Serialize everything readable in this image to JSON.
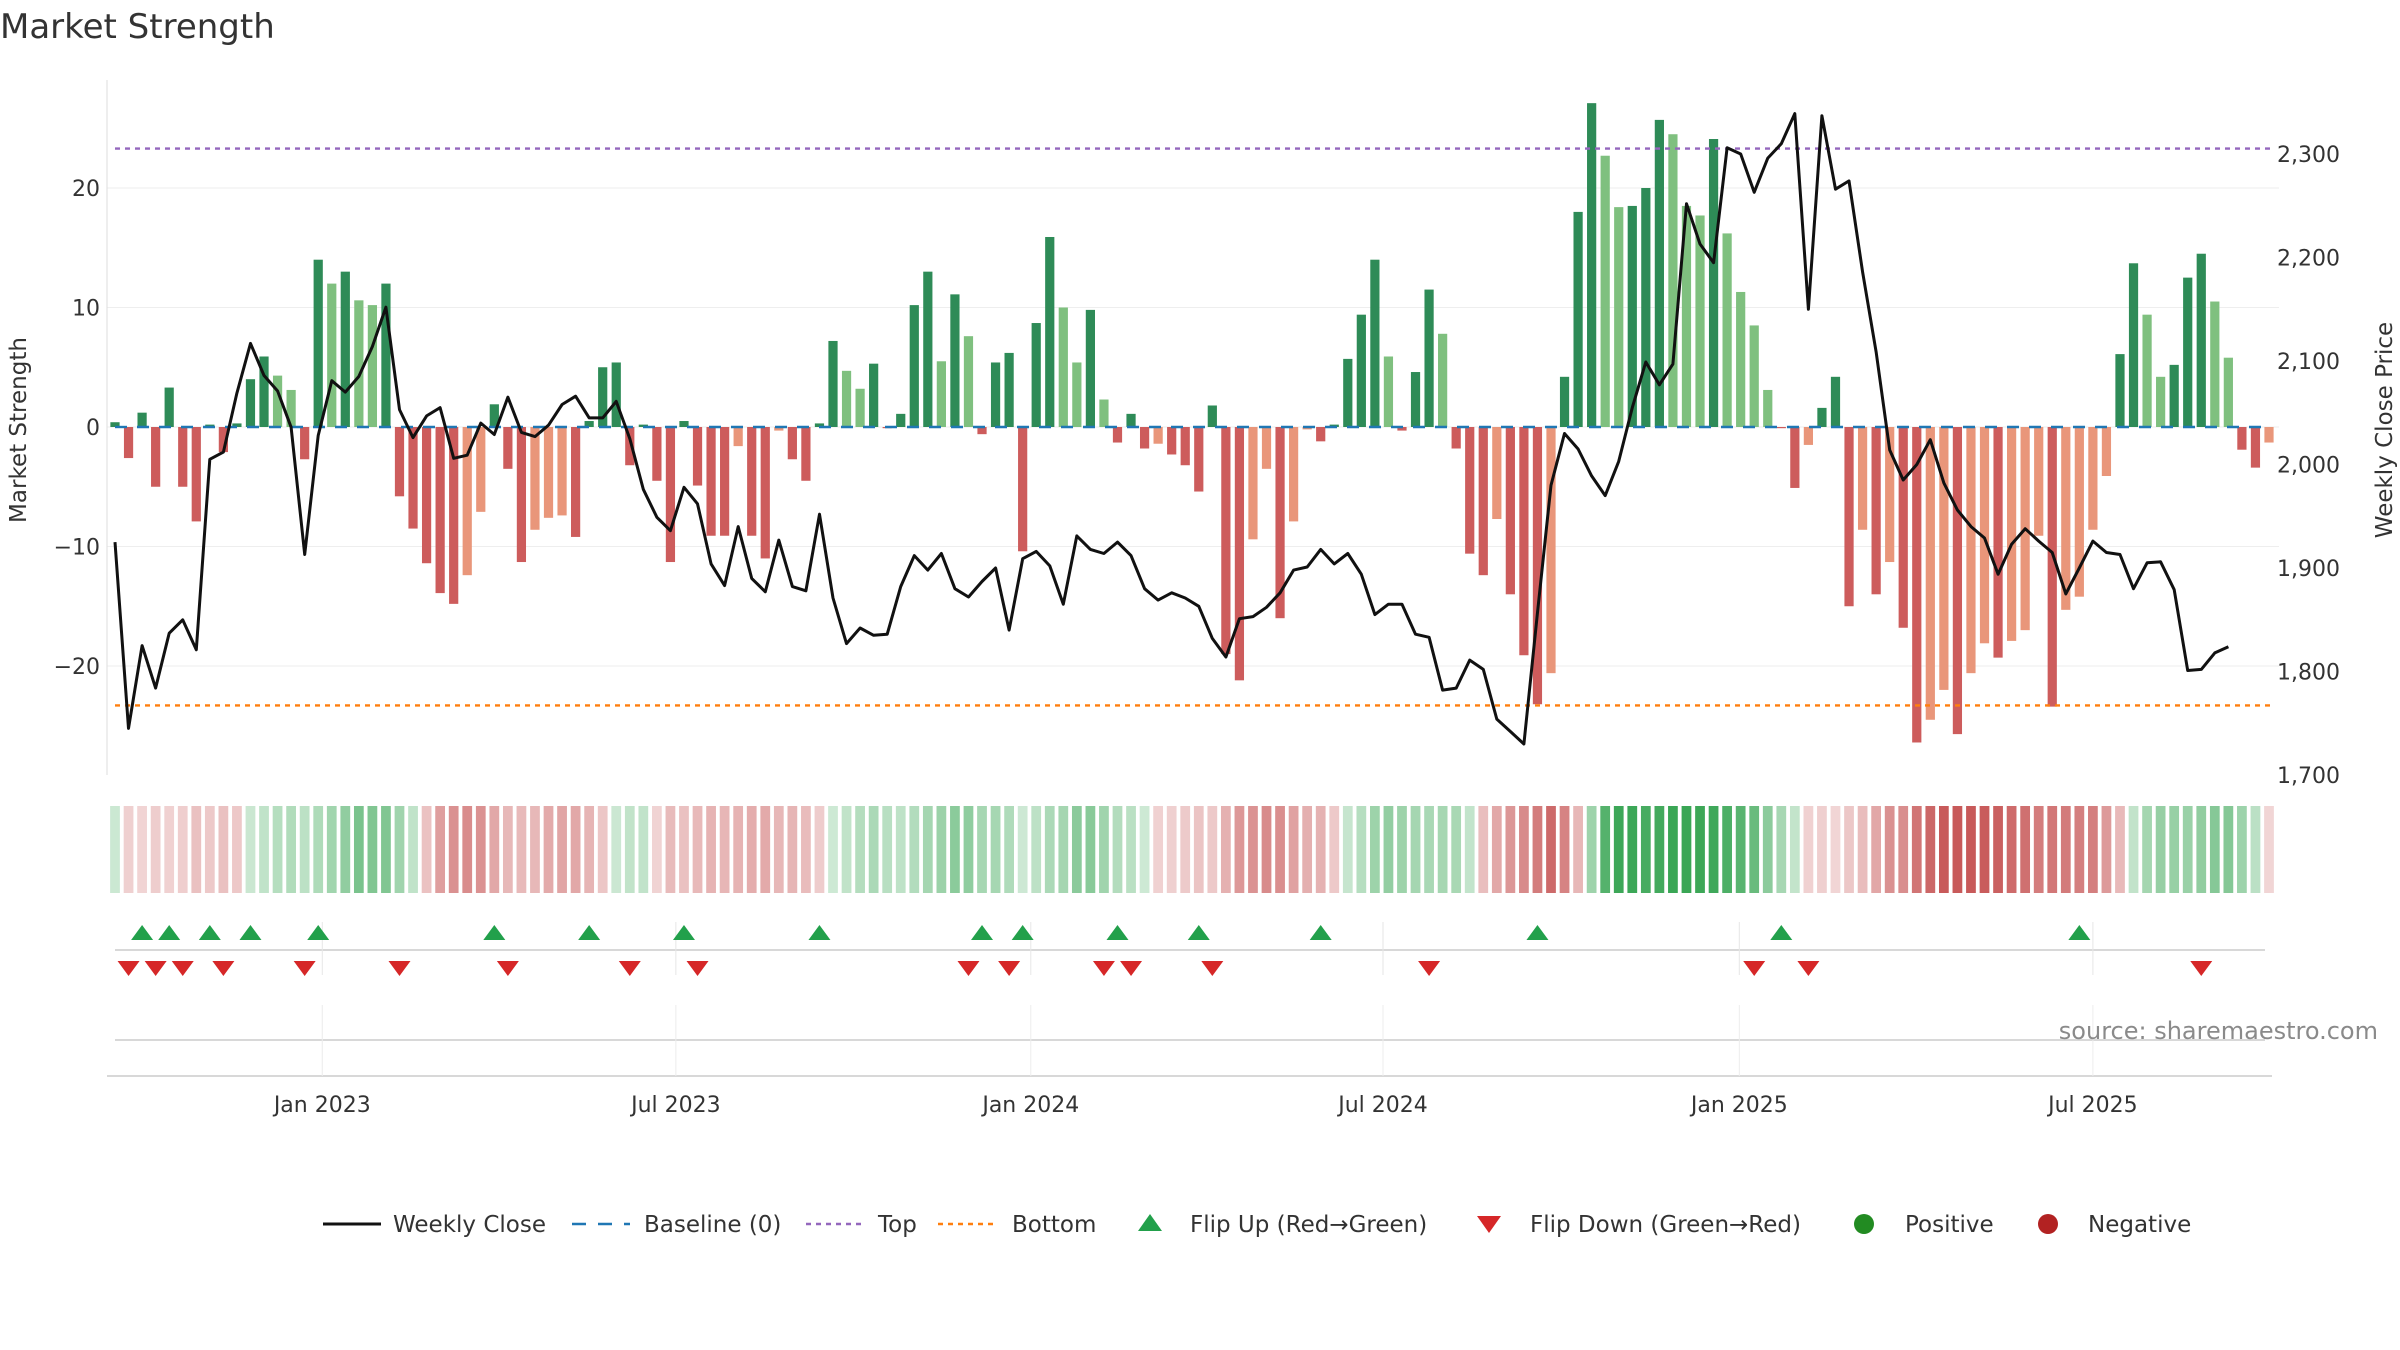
{
  "chart_data": {
    "type": "bar",
    "title": "Market Strength",
    "ylabel": "Market Strength",
    "y2label": "Weekly Close Price",
    "source": "source: sharemaestro.com",
    "ylim": [
      -29,
      29
    ],
    "y_ticks": [
      -20,
      -10,
      0,
      10,
      20
    ],
    "y_tick_labels": [
      "−20",
      "−10",
      "0",
      "10",
      "20"
    ],
    "y2lim": [
      1700,
      2350
    ],
    "y2_ticks": [
      1700,
      1800,
      1900,
      2000,
      2100,
      2200,
      2300
    ],
    "y2_tick_labels": [
      "1,700",
      "1,800",
      "1,900",
      "2,000",
      "2,100",
      "2,200",
      "2,300"
    ],
    "x_tick_labels": [
      "Jan 2023",
      "Jul 2023",
      "Jan 2024",
      "Jul 2024",
      "Jan 2025",
      "Jul 2025"
    ],
    "x_tick_weeks": [
      15.3,
      41.4,
      67.6,
      93.6,
      119.9,
      146.0
    ],
    "top_threshold": 23.3,
    "bottom_threshold": -23.3,
    "legend": {
      "placement": "bottom-center",
      "entries": [
        "Weekly Close",
        "Baseline (0)",
        "Top",
        "Bottom",
        "Flip Up (Red→Green)",
        "Flip Down (Green→Red)",
        "Positive",
        "Negative"
      ]
    },
    "colors": {
      "pos_strong": "#2e8b57",
      "pos_weak": "#7fc07f",
      "neg_strong": "#cd5c5c",
      "neg_weak": "#e9967a",
      "price_line": "#111111",
      "baseline": "#1f77b4",
      "top_line": "#9467bd",
      "bottom_line": "#ff7f0e",
      "flip_up": "#22a04b",
      "flip_down": "#d62728",
      "positive_dot": "#228b22",
      "negative_dot": "#b22222"
    },
    "series": [
      {
        "name": "Market Strength",
        "values": [
          0.4,
          -2.6,
          1.2,
          -5,
          3.3,
          -5,
          -7.9,
          0.2,
          -2.1,
          0.3,
          4,
          5.9,
          4.3,
          3.1,
          -2.7,
          14,
          12,
          13,
          10.6,
          10.2,
          12,
          -5.8,
          -8.5,
          -11.4,
          -13.9,
          -14.8,
          -12.4,
          -7.1,
          1.9,
          -3.5,
          -11.3,
          -8.6,
          -7.6,
          -7.4,
          -9.2,
          0.5,
          5,
          5.4,
          -3.2,
          0.2,
          -4.5,
          -11.3,
          0.5,
          -4.9,
          -9.1,
          -9.1,
          -1.6,
          -9.1,
          -11,
          -0.3,
          -2.7,
          -4.5,
          0.3,
          7.2,
          4.7,
          3.2,
          5.3,
          -0.1,
          1.1,
          10.2,
          13,
          5.5,
          11.1,
          7.6,
          -0.6,
          5.4,
          6.2,
          -10.4,
          8.7,
          15.9,
          10,
          5.4,
          9.8,
          2.3,
          -1.3,
          1.1,
          -1.8,
          -1.4,
          -2.3,
          -3.2,
          -5.4,
          1.8,
          -19,
          -21.2,
          -9.4,
          -3.5,
          -16,
          -7.9,
          -0.2,
          -1.2,
          0.2,
          5.7,
          9.4,
          14,
          5.9,
          -0.3,
          4.6,
          11.5,
          7.8,
          -1.8,
          -10.6,
          -12.4,
          -7.7,
          -14,
          -19.1,
          -23.2,
          -20.6,
          4.2,
          18,
          27.1,
          22.7,
          18.4,
          18.5,
          20,
          25.7,
          24.5,
          18.5,
          17.7,
          24.1,
          16.2,
          11.3,
          8.5,
          3.1,
          -0.1,
          -5.1,
          -1.5,
          1.6,
          4.2,
          -15,
          -8.6,
          -14,
          -11.3,
          -16.8,
          -26.4,
          -24.5,
          -22,
          -25.7,
          -20.6,
          -18.1,
          -19.3,
          -17.9,
          -17,
          -9.1,
          -23.4,
          -15.3,
          -14.2,
          -8.6,
          -4.1,
          6.1,
          13.7,
          9.4,
          4.2,
          5.2,
          12.5,
          14.5,
          10.5,
          5.8,
          -1.9,
          -3.4,
          -1.3
        ]
      },
      {
        "name": "Weekly Close",
        "values": [
          1925,
          1745,
          1825,
          1784,
          1837,
          1850,
          1821,
          2005,
          2012,
          2069,
          2117,
          2086,
          2071,
          2036,
          1913,
          2028,
          2081,
          2070,
          2085,
          2114,
          2152,
          2053,
          2026,
          2047,
          2055,
          2006,
          2009,
          2040,
          2029,
          2065,
          2031,
          2027,
          2038,
          2058,
          2066,
          2045,
          2045,
          2061,
          2025,
          1976,
          1949,
          1936,
          1978,
          1962,
          1904,
          1883,
          1940,
          1890,
          1877,
          1927,
          1882,
          1878,
          1952,
          1871,
          1827,
          1842,
          1835,
          1836,
          1882,
          1912,
          1898,
          1914,
          1880,
          1872,
          1887,
          1900,
          1840,
          1909,
          1916,
          1902,
          1865,
          1931,
          1918,
          1914,
          1925,
          1912,
          1880,
          1869,
          1876,
          1871,
          1863,
          1832,
          1814,
          1851,
          1853,
          1862,
          1876,
          1898,
          1901,
          1918,
          1904,
          1914,
          1894,
          1855,
          1865,
          1865,
          1836,
          1833,
          1782,
          1784,
          1811,
          1802,
          1754,
          1742,
          1730,
          1857,
          1980,
          2030,
          2015,
          1989,
          1970,
          2003,
          2055,
          2099,
          2077,
          2097,
          2252,
          2213,
          2195,
          2306,
          2300,
          2263,
          2296,
          2310,
          2339,
          2150,
          2337,
          2266,
          2274,
          2186,
          2109,
          2014,
          1985,
          2000,
          2024,
          1982,
          1956,
          1940,
          1929,
          1894,
          1923,
          1938,
          1926,
          1915,
          1875,
          1900,
          1926,
          1915,
          1913,
          1880,
          1905,
          1906,
          1879,
          1801,
          1802,
          1818,
          1824
        ]
      }
    ],
    "flip_up_weeks": [
      2,
      4,
      7,
      10,
      15,
      28,
      35,
      42,
      52,
      64,
      67,
      74,
      80,
      89,
      105,
      123,
      145
    ],
    "flip_down_weeks": [
      1,
      3,
      5,
      8,
      14,
      21,
      29,
      38,
      43,
      63,
      66,
      73,
      75,
      81,
      97,
      121,
      125,
      154
    ]
  }
}
